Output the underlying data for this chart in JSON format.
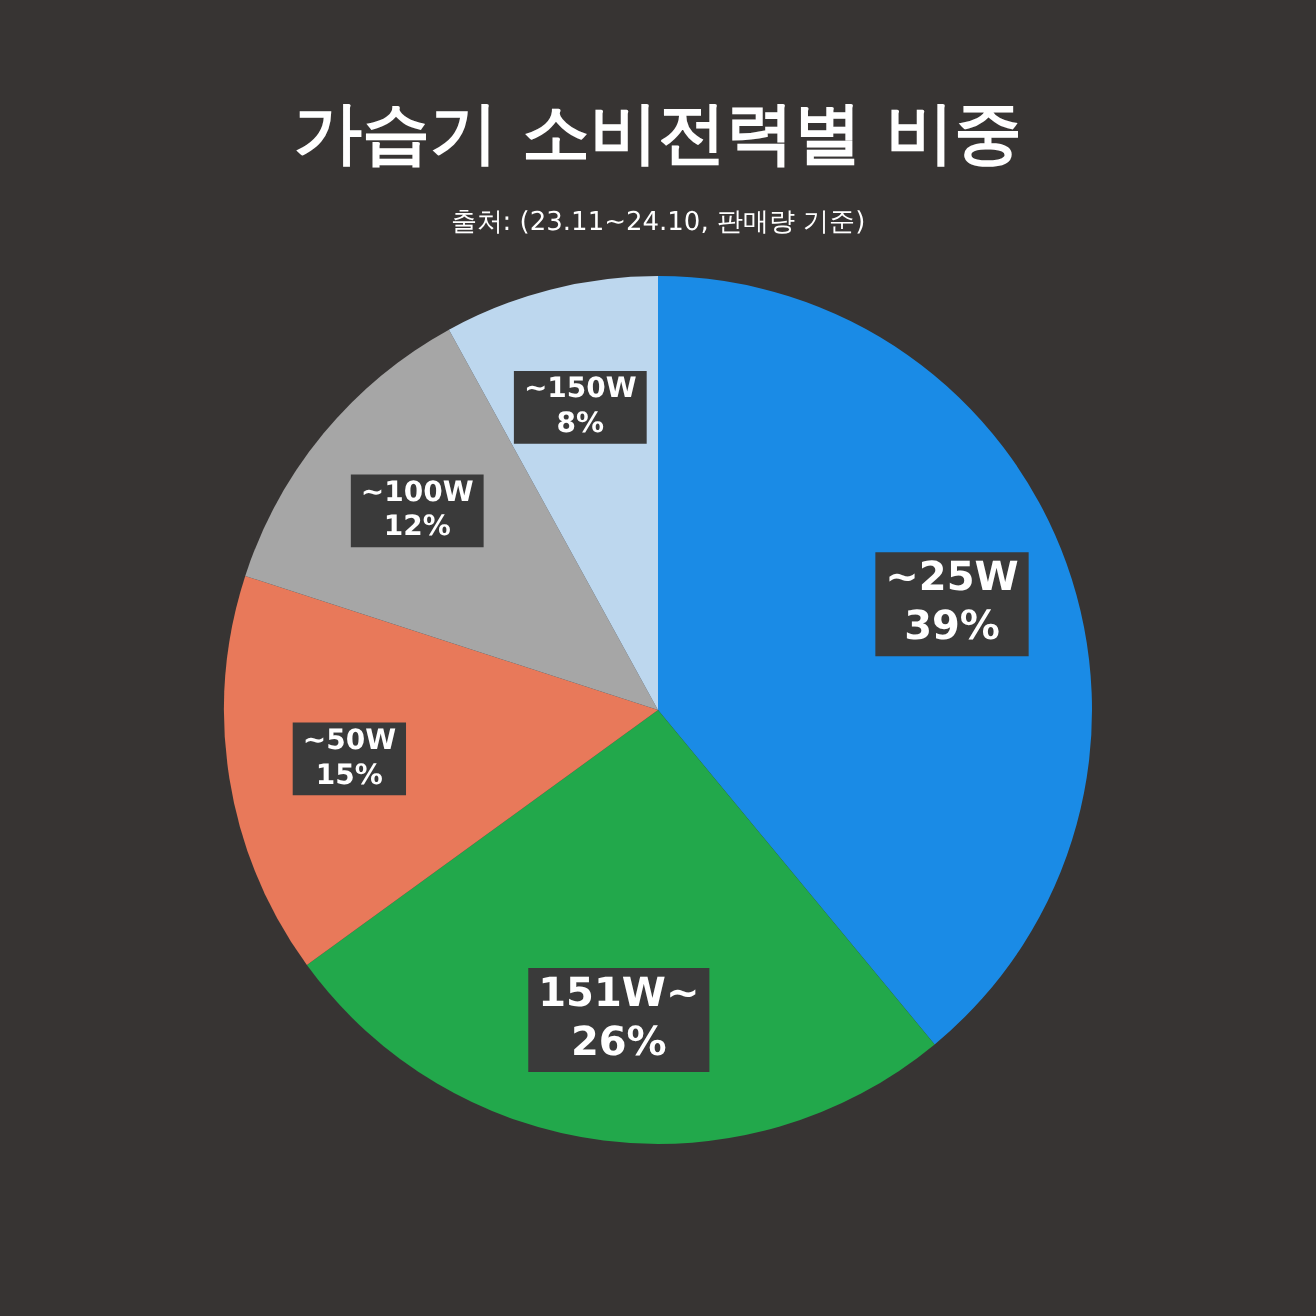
{
  "chart_data": {
    "type": "pie",
    "title": "가습기 소비전력별 비중",
    "subtitle": "출처: (23.11~24.10, 판매량 기준)",
    "categories": [
      "~25W",
      "151W~",
      "~50W",
      "~100W",
      "~150W"
    ],
    "values": [
      39,
      26,
      15,
      12,
      8
    ],
    "colors": [
      "#1a8be6",
      "#22a84b",
      "#e8795a",
      "#a6a6a6",
      "#bdd7ee"
    ],
    "value_labels": [
      "39%",
      "26%",
      "15%",
      "12%",
      "8%"
    ],
    "legend": false
  }
}
